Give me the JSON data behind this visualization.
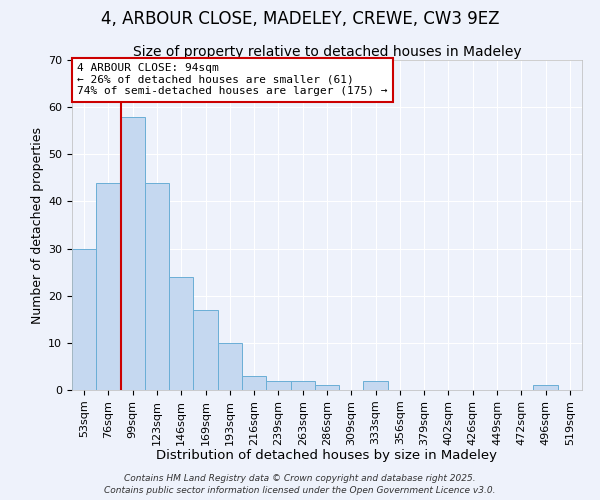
{
  "title": "4, ARBOUR CLOSE, MADELEY, CREWE, CW3 9EZ",
  "subtitle": "Size of property relative to detached houses in Madeley",
  "xlabel": "Distribution of detached houses by size in Madeley",
  "ylabel": "Number of detached properties",
  "bar_labels": [
    "53sqm",
    "76sqm",
    "99sqm",
    "123sqm",
    "146sqm",
    "169sqm",
    "193sqm",
    "216sqm",
    "239sqm",
    "263sqm",
    "286sqm",
    "309sqm",
    "333sqm",
    "356sqm",
    "379sqm",
    "402sqm",
    "426sqm",
    "449sqm",
    "472sqm",
    "496sqm",
    "519sqm"
  ],
  "bar_values": [
    30,
    44,
    58,
    44,
    24,
    17,
    10,
    3,
    2,
    2,
    1,
    0,
    2,
    0,
    0,
    0,
    0,
    0,
    0,
    1,
    0
  ],
  "bar_color": "#c5d8f0",
  "bar_edge_color": "#6aaed6",
  "bar_width": 1.0,
  "vline_color": "#cc0000",
  "vline_x_index": 2,
  "ylim": [
    0,
    70
  ],
  "yticks": [
    0,
    10,
    20,
    30,
    40,
    50,
    60,
    70
  ],
  "annotation_title": "4 ARBOUR CLOSE: 94sqm",
  "annotation_line1": "← 26% of detached houses are smaller (61)",
  "annotation_line2": "74% of semi-detached houses are larger (175) →",
  "annotation_box_facecolor": "#ffffff",
  "annotation_box_edgecolor": "#cc0000",
  "footer_line1": "Contains HM Land Registry data © Crown copyright and database right 2025.",
  "footer_line2": "Contains public sector information licensed under the Open Government Licence v3.0.",
  "background_color": "#eef2fb",
  "grid_color": "#ffffff",
  "title_fontsize": 12,
  "subtitle_fontsize": 10,
  "xlabel_fontsize": 9.5,
  "ylabel_fontsize": 9,
  "tick_fontsize": 8,
  "annot_fontsize": 8,
  "footer_fontsize": 6.5
}
